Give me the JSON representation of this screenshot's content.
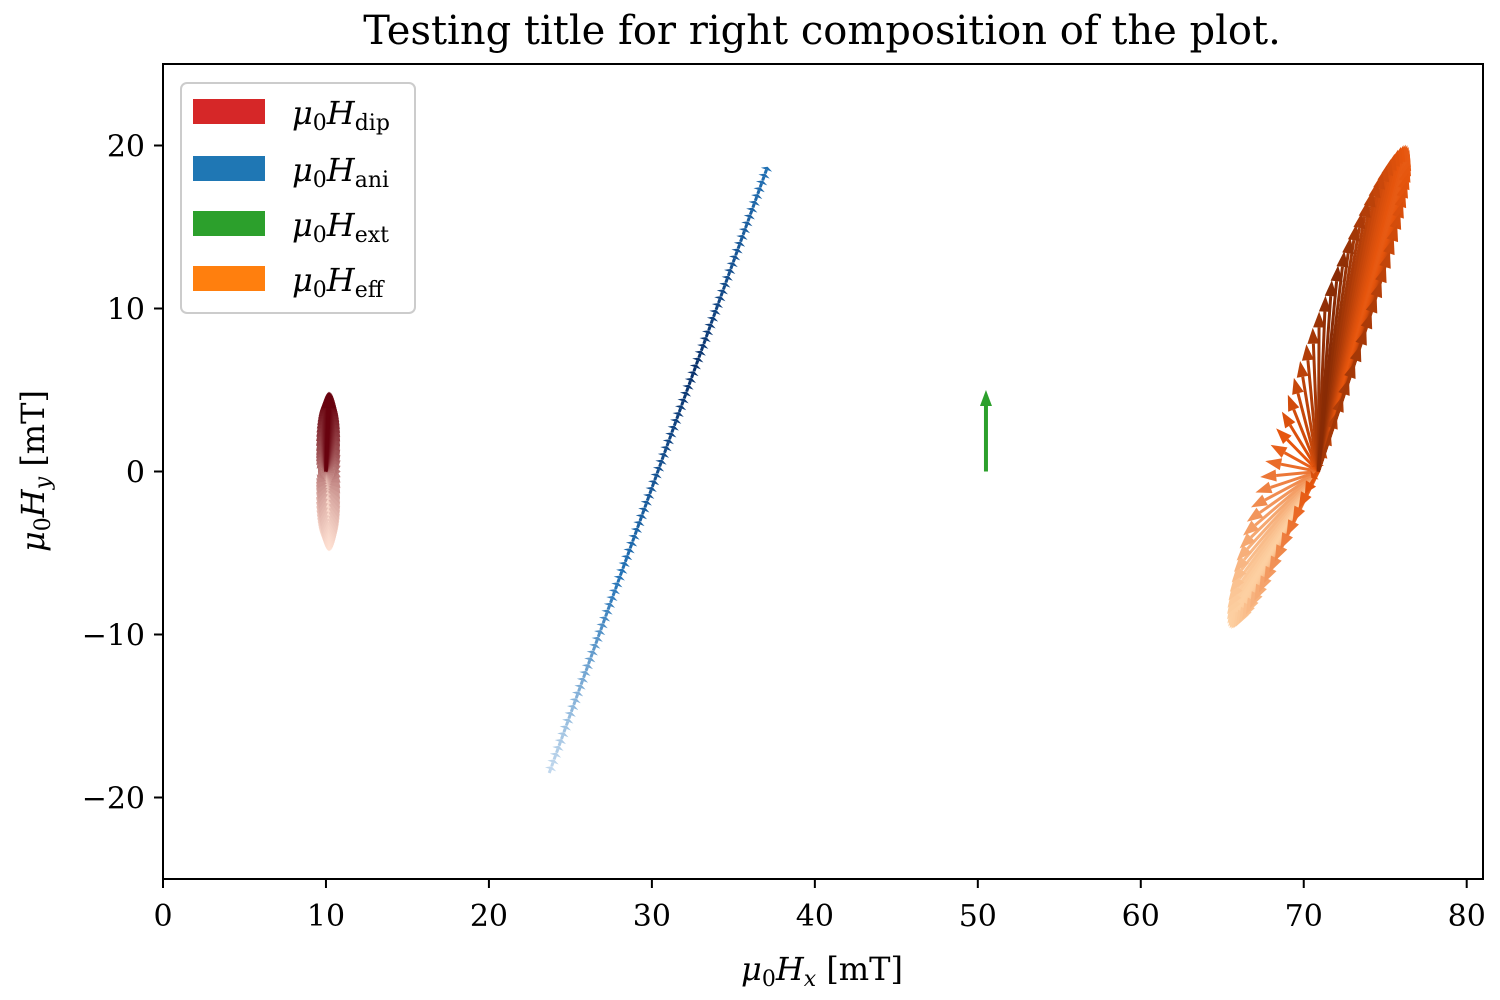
{
  "chart_data": {
    "type": "quiver",
    "title": "Testing title for right composition of the plot.",
    "xlabel": {
      "text": "μ₀Hₓ [mT]",
      "base": "μ",
      "sub0": "0",
      "var": "H",
      "subvar": "x",
      "unit": " [mT]"
    },
    "ylabel": {
      "text": "μ₀H_y [mT]",
      "base": "μ",
      "sub0": "0",
      "var": "H",
      "subvar": "y",
      "unit": " [mT]"
    },
    "xlim": [
      0,
      81
    ],
    "ylim": [
      -25,
      25
    ],
    "xticks": [
      0,
      10,
      20,
      30,
      40,
      50,
      60,
      70,
      80
    ],
    "yticks": [
      -20,
      -10,
      0,
      10,
      20
    ],
    "xtick_labels": [
      "0",
      "10",
      "20",
      "30",
      "40",
      "50",
      "60",
      "70",
      "80"
    ],
    "ytick_labels": [
      "−20",
      "−10",
      "0",
      "10",
      "20"
    ],
    "grid": false,
    "legend": {
      "placement": "top-left",
      "entries": [
        {
          "symbol": "μ",
          "sub0": "0",
          "var": "H",
          "sub": "dip",
          "color": "#d62728"
        },
        {
          "symbol": "μ",
          "sub0": "0",
          "var": "H",
          "sub": "ani",
          "color": "#1f77b4"
        },
        {
          "symbol": "μ",
          "sub0": "0",
          "var": "H",
          "sub": "ext",
          "color": "#2ca02c"
        },
        {
          "symbol": "μ",
          "sub0": "0",
          "var": "H",
          "sub": "eff",
          "color": "#ff7f0e"
        }
      ]
    },
    "series": [
      {
        "key": "dip",
        "colormap": "Reds",
        "colors": {
          "dark": "#67000d",
          "light": "#fee0d2"
        },
        "origin": [
          10,
          0
        ],
        "tip_locus": {
          "type": "ellipse",
          "center": [
            10.2,
            0
          ],
          "radius_x": 0.7,
          "radius_y": 4.9,
          "angle_deg": 0
        }
      },
      {
        "key": "ani",
        "colormap": "Blues",
        "colors": {
          "dark": "#08306b",
          "mid": "#2171b5",
          "light": "#c6dbef"
        },
        "origin": [
          23.7,
          -18.5
        ],
        "tip_locus": {
          "type": "segment",
          "start": [
            23.7,
            -18.5
          ],
          "end": [
            37.1,
            18.7
          ]
        },
        "darkest_tip": [
          32.7,
          6.5
        ]
      },
      {
        "key": "ext",
        "color": "#2ca02c",
        "origin": [
          50.5,
          0
        ],
        "vector": [
          0,
          5
        ]
      },
      {
        "key": "eff",
        "colormap": "Oranges",
        "colors": {
          "dark": "#7f2704",
          "mid": "#e6550d",
          "light": "#fdd0a2"
        },
        "origin": [
          70.9,
          0
        ],
        "tip_locus": {
          "type": "ellipse",
          "center": [
            70.9,
            5.2
          ],
          "radius_x": 1.6,
          "radius_y": 15.8,
          "angle_deg": 20
        },
        "darkest_tip": [
          72.2,
          11.3
        ]
      }
    ]
  }
}
